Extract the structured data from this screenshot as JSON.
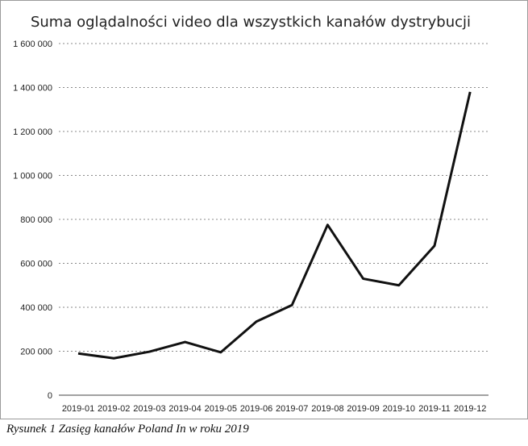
{
  "chart_data": {
    "type": "line",
    "title": "Suma oglądalności video dla wszystkich kanałów dystrybucji",
    "categories": [
      "2019-01",
      "2019-02",
      "2019-03",
      "2019-04",
      "2019-05",
      "2019-06",
      "2019-07",
      "2019-08",
      "2019-09",
      "2019-10",
      "2019-11",
      "2019-12"
    ],
    "series": [
      {
        "values": [
          190000,
          168000,
          198000,
          242000,
          195000,
          335000,
          410000,
          775000,
          530000,
          500000,
          680000,
          1380000
        ]
      }
    ],
    "ylim": [
      0,
      1600000
    ],
    "yticks": [
      0,
      200000,
      400000,
      600000,
      800000,
      1000000,
      1200000,
      1400000,
      1600000
    ],
    "ytick_labels": [
      "0",
      "200 000",
      "400 000",
      "600 000",
      "800 000",
      "1 000 000",
      "1 200 000",
      "1 400 000",
      "1 600 000"
    ],
    "grid": true,
    "legend": "none",
    "line_color": "#111111"
  },
  "caption": "Rysunek 1 Zasięg kanałów Poland In w roku 2019"
}
